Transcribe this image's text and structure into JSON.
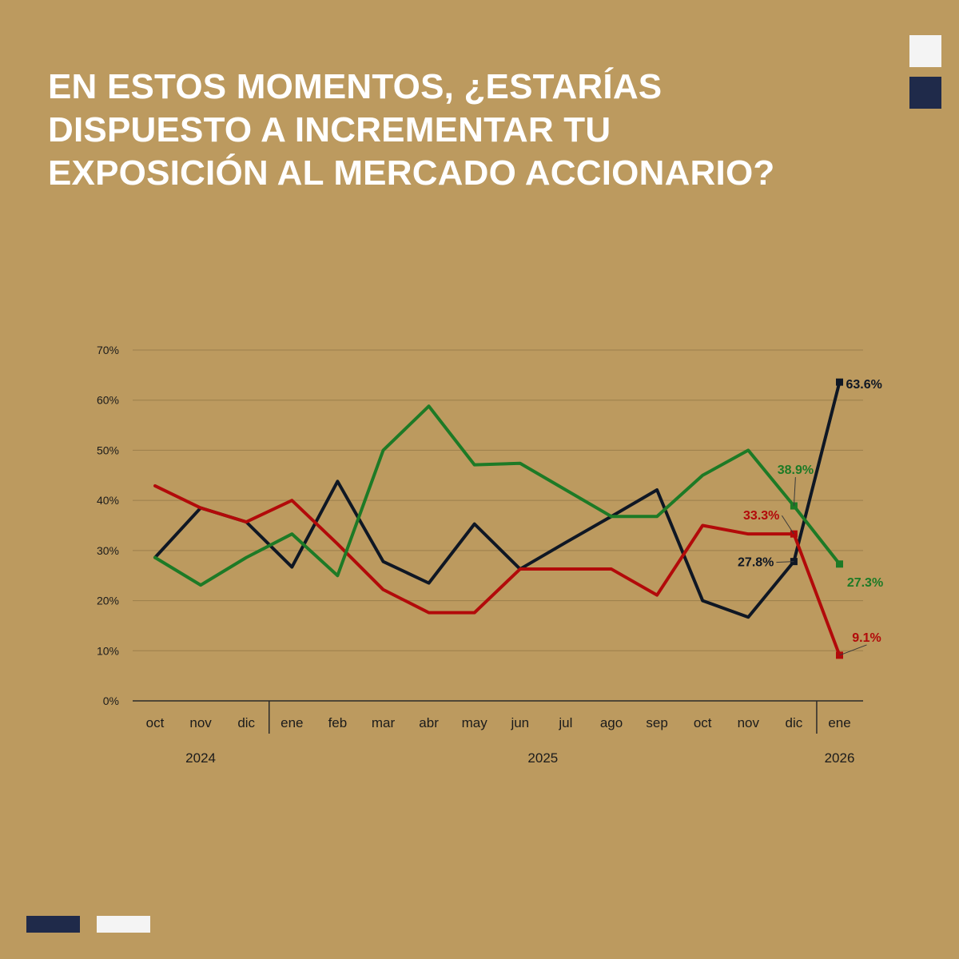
{
  "title_lines": [
    "EN ESTOS MOMENTOS, ¿ESTARÍAS",
    "DISPUESTO A INCREMENTAR TU",
    "EXPOSICIÓN AL MERCADO ACCIONARIO?"
  ],
  "colors": {
    "background": "#bc9a5f",
    "navy": "#1f2a4a",
    "white": "#f4f4f4",
    "grid": "#9c7f4c",
    "series_black": "#0f1724",
    "series_green": "#1d7a26",
    "series_red": "#b20a0a"
  },
  "chart_data": {
    "type": "line",
    "title": "EN ESTOS MOMENTOS, ¿ESTARÍAS DISPUESTO A INCREMENTAR TU EXPOSICIÓN AL MERCADO ACCIONARIO?",
    "ylim": [
      0,
      70
    ],
    "yticks": [
      "0%",
      "10%",
      "20%",
      "30%",
      "40%",
      "50%",
      "60%",
      "70%"
    ],
    "categories": [
      "oct",
      "nov",
      "dic",
      "ene",
      "feb",
      "mar",
      "abr",
      "may",
      "jun",
      "jul",
      "ago",
      "sep",
      "oct",
      "nov",
      "dic",
      "ene"
    ],
    "years": [
      {
        "label": "2024",
        "start": 0,
        "end": 2
      },
      {
        "label": "2025",
        "start": 3,
        "end": 14
      },
      {
        "label": "2026",
        "start": 15,
        "end": 15
      }
    ],
    "year_separators_after": [
      2,
      14
    ],
    "series": [
      {
        "name": "black",
        "color": "#0f1724",
        "values": [
          28.6,
          38.5,
          35.7,
          26.7,
          43.8,
          27.8,
          23.5,
          35.3,
          26.3,
          31.6,
          36.8,
          42.1,
          20.0,
          16.7,
          27.8,
          63.6
        ],
        "labels": [
          {
            "index": 14,
            "text": "27.8%"
          },
          {
            "index": 15,
            "text": "63.6%"
          }
        ]
      },
      {
        "name": "green",
        "color": "#1d7a26",
        "values": [
          28.6,
          23.1,
          28.6,
          33.3,
          25.0,
          50.0,
          58.8,
          47.1,
          47.4,
          42.1,
          36.8,
          36.8,
          45.0,
          50.0,
          38.9,
          27.3
        ],
        "labels": [
          {
            "index": 14,
            "text": "38.9%"
          },
          {
            "index": 15,
            "text": "27.3%"
          }
        ]
      },
      {
        "name": "red",
        "color": "#b20a0a",
        "values": [
          42.9,
          38.5,
          35.7,
          40.0,
          31.3,
          22.2,
          17.6,
          17.6,
          26.3,
          26.3,
          26.3,
          21.1,
          35.0,
          33.3,
          33.3,
          9.1
        ],
        "labels": [
          {
            "index": 14,
            "text": "33.3%"
          },
          {
            "index": 15,
            "text": "9.1%"
          }
        ]
      }
    ]
  }
}
